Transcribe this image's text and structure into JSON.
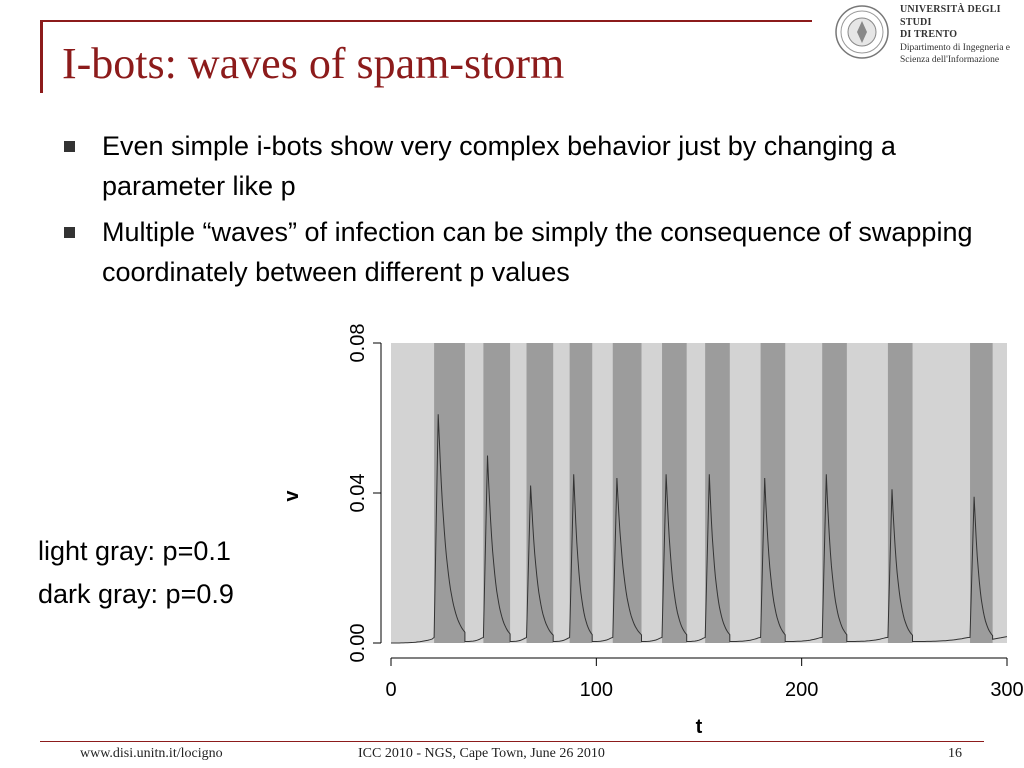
{
  "slide": {
    "title": "I-bots: waves of spam-storm",
    "logo": {
      "university": "UNIVERSITÀ DEGLI STUDI",
      "city": "DI TRENTO",
      "dept_line1": "Dipartimento di Ingegneria e",
      "dept_line2": "Scienza dell'Informazione"
    },
    "bullets": [
      "Even simple i-bots show very complex behavior just by changing a parameter like p",
      "Multiple “waves” of infection can be simply the consequence of swapping coordinately between different p values"
    ],
    "legend_note": {
      "light": "light gray: p=0.1",
      "dark": "dark gray: p=0.9"
    },
    "footer": {
      "left": "www.disi.unitn.it/locigno",
      "center": "ICC 2010 - NGS, Cape Town, June 26  2010",
      "page": "16"
    }
  },
  "colors": {
    "accent": "#8c1b1b",
    "light_band": "#d3d3d3",
    "dark_band": "#9c9c9c",
    "curve": "#333333"
  },
  "chart_data": {
    "type": "line",
    "xlabel": "t",
    "ylabel": "v",
    "xlim": [
      0,
      300
    ],
    "ylim": [
      0,
      0.08
    ],
    "xticks": [
      "0",
      "100",
      "200",
      "300"
    ],
    "yticks": [
      "0.00",
      "0.04",
      "0.08"
    ],
    "background_bands": {
      "light_meaning": "p=0.1",
      "dark_meaning": "p=0.9",
      "dark_intervals": [
        [
          21,
          36
        ],
        [
          45,
          58
        ],
        [
          66,
          79
        ],
        [
          87,
          98
        ],
        [
          108,
          122
        ],
        [
          132,
          144
        ],
        [
          153,
          165
        ],
        [
          180,
          192
        ],
        [
          210,
          222
        ],
        [
          242,
          254
        ],
        [
          282,
          293
        ]
      ]
    },
    "series": [
      {
        "peaks": [
          {
            "t_start": 21,
            "t_peak": 23,
            "peak": 0.061,
            "t_end": 36
          },
          {
            "t_start": 45,
            "t_peak": 47,
            "peak": 0.05,
            "t_end": 58
          },
          {
            "t_start": 66,
            "t_peak": 68,
            "peak": 0.042,
            "t_end": 79
          },
          {
            "t_start": 87,
            "t_peak": 89,
            "peak": 0.045,
            "t_end": 98
          },
          {
            "t_start": 108,
            "t_peak": 110,
            "peak": 0.044,
            "t_end": 122
          },
          {
            "t_start": 132,
            "t_peak": 134,
            "peak": 0.045,
            "t_end": 144
          },
          {
            "t_start": 153,
            "t_peak": 155,
            "peak": 0.045,
            "t_end": 165
          },
          {
            "t_start": 180,
            "t_peak": 182,
            "peak": 0.044,
            "t_end": 192
          },
          {
            "t_start": 210,
            "t_peak": 212,
            "peak": 0.045,
            "t_end": 222
          },
          {
            "t_start": 242,
            "t_peak": 244,
            "peak": 0.041,
            "t_end": 254
          },
          {
            "t_start": 282,
            "t_peak": 284,
            "peak": 0.039,
            "t_end": 293
          }
        ],
        "baseline": 0.0
      }
    ]
  }
}
